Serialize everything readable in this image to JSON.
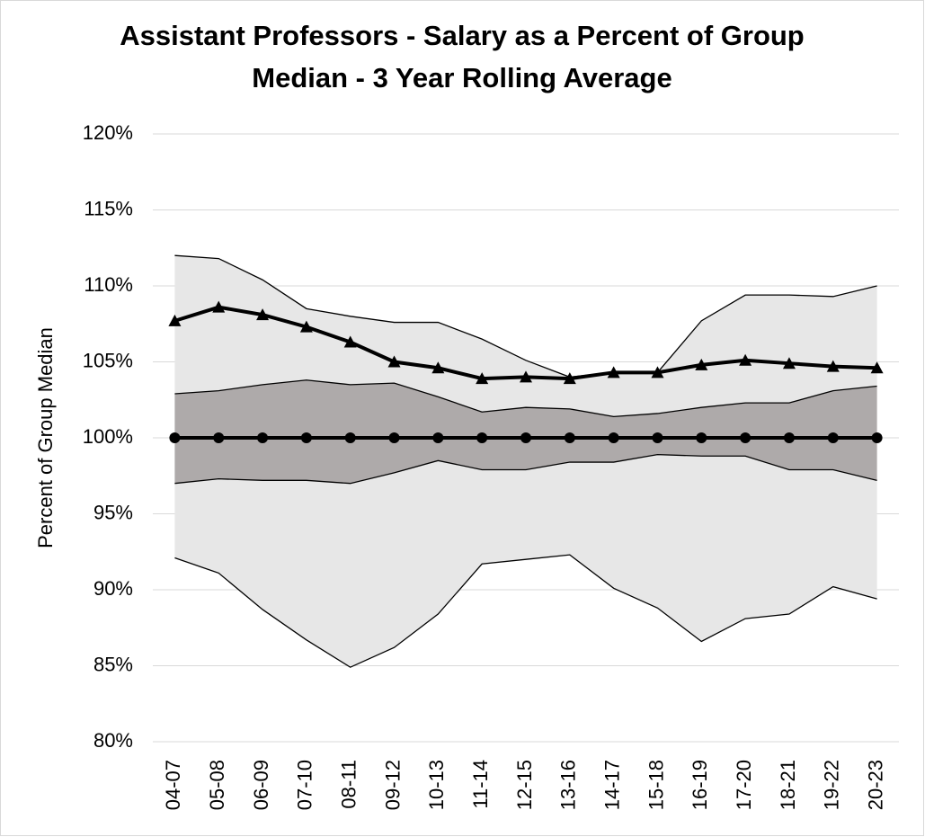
{
  "chart_data": {
    "type": "line",
    "title": [
      "Assistant Professors - Salary as a Percent of Group",
      "Median - 3 Year Rolling Average"
    ],
    "y_label": "Percent of Group Median",
    "categories": [
      "04-07",
      "05-08",
      "06-09",
      "07-10",
      "08-11",
      "09-12",
      "10-13",
      "11-14",
      "12-15",
      "13-16",
      "14-17",
      "15-18",
      "16-19",
      "17-20",
      "18-21",
      "19-22",
      "20-23"
    ],
    "bands": [
      {
        "color": "#e7e7e7",
        "upper": [
          112.0,
          111.8,
          110.4,
          108.5,
          108.0,
          107.6,
          107.6,
          106.5,
          105.1,
          104.0,
          104.3,
          104.3,
          107.7,
          109.4,
          109.4,
          109.3,
          110.0
        ],
        "lower": [
          92.1,
          91.1,
          88.7,
          86.7,
          84.9,
          86.2,
          88.4,
          91.7,
          92.0,
          92.3,
          90.1,
          88.8,
          86.6,
          88.1,
          88.4,
          90.2,
          89.4
        ]
      },
      {
        "color": "#aeaaaa",
        "upper": [
          102.9,
          103.1,
          103.5,
          103.8,
          103.5,
          103.6,
          102.7,
          101.7,
          102.0,
          101.9,
          101.4,
          101.6,
          102.0,
          102.3,
          102.3,
          103.1,
          103.4
        ],
        "lower": [
          97.0,
          97.3,
          97.2,
          97.2,
          97.0,
          97.7,
          98.5,
          97.9,
          97.9,
          98.4,
          98.4,
          98.9,
          98.8,
          98.8,
          97.9,
          97.9,
          97.2
        ]
      }
    ],
    "series": [
      {
        "color": "#000000",
        "marker": "triangle",
        "values": [
          107.7,
          108.6,
          108.1,
          107.3,
          106.3,
          105.0,
          104.6,
          103.9,
          104.0,
          103.9,
          104.3,
          104.3,
          104.8,
          105.1,
          104.9,
          104.7,
          104.6
        ]
      },
      {
        "color": "#000000",
        "marker": "circle",
        "values": [
          100,
          100,
          100,
          100,
          100,
          100,
          100,
          100,
          100,
          100,
          100,
          100,
          100,
          100,
          100,
          100,
          100
        ]
      }
    ],
    "ylim": [
      80,
      120
    ],
    "yticks": [
      {
        "value": 80,
        "label": "80%"
      },
      {
        "value": 85,
        "label": "85%"
      },
      {
        "value": 90,
        "label": "90%"
      },
      {
        "value": 95,
        "label": "95%"
      },
      {
        "value": 100,
        "label": "100%"
      },
      {
        "value": 105,
        "label": "105%"
      },
      {
        "value": 110,
        "label": "110%"
      },
      {
        "value": 115,
        "label": "115%"
      },
      {
        "value": 120,
        "label": "120%"
      }
    ],
    "grid": true
  }
}
